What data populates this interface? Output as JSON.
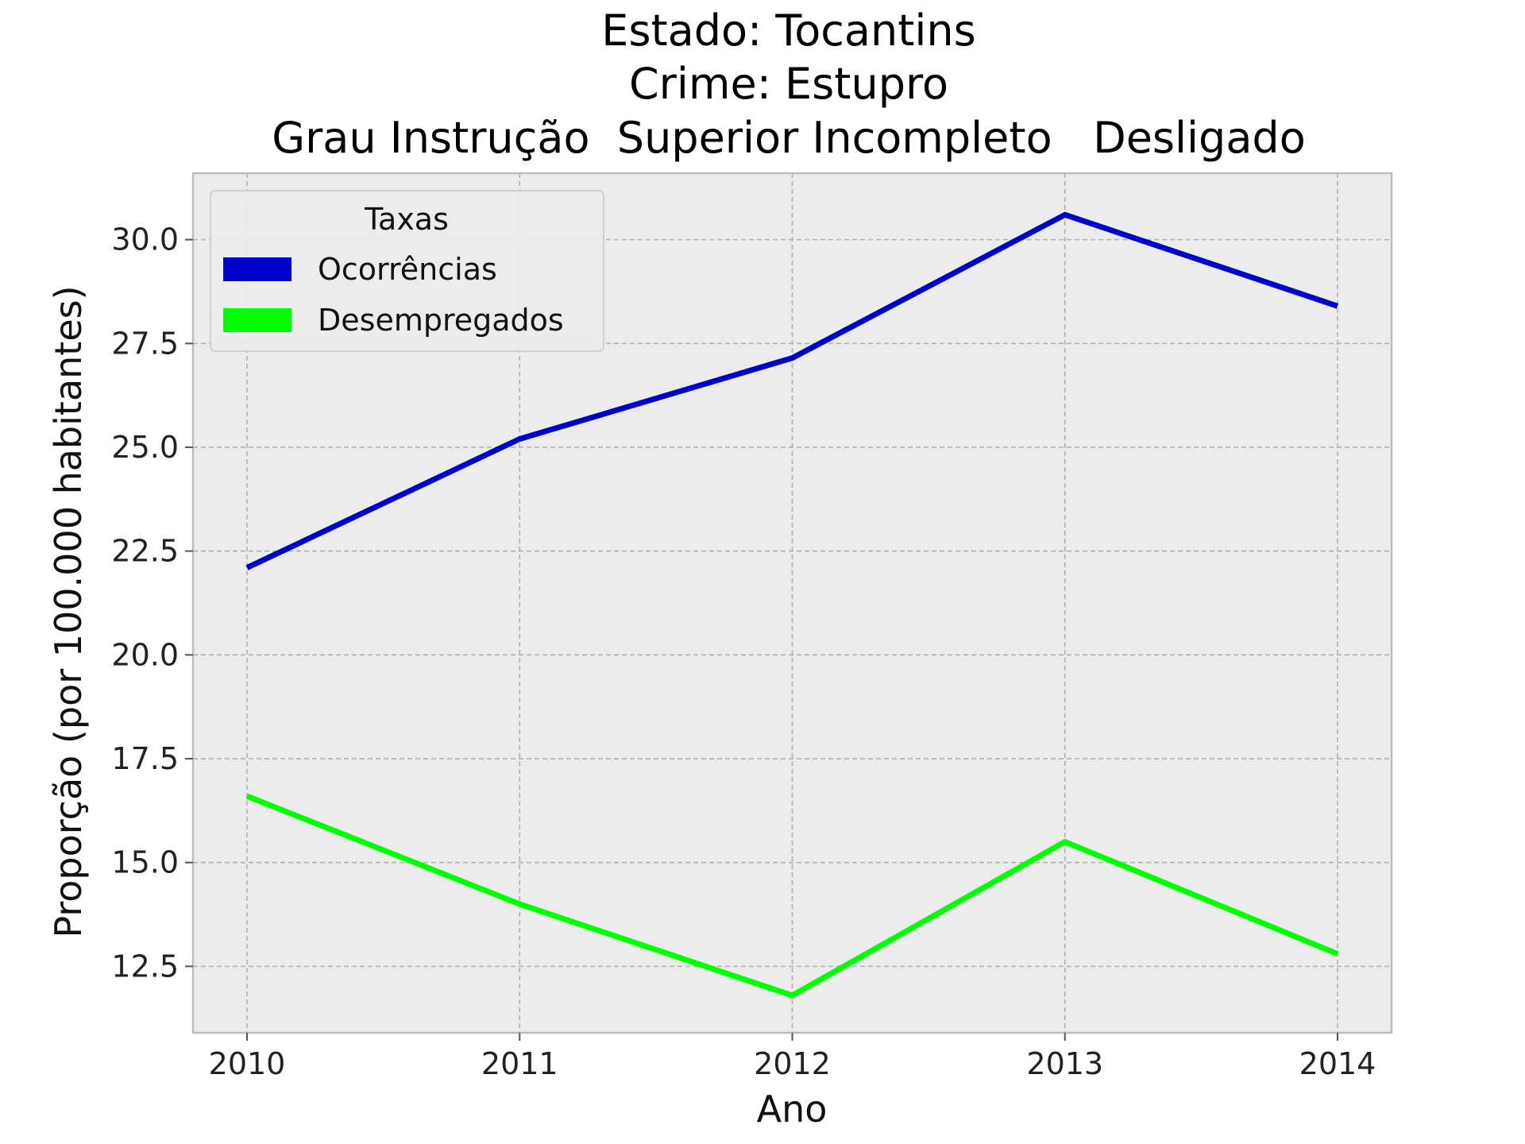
{
  "chart_data": {
    "type": "line",
    "title_lines": [
      "Estado: Tocantins",
      "Crime: Estupro",
      "Grau Instrução  Superior Incompleto   Desligado"
    ],
    "xlabel": "Ano",
    "ylabel": "Proporção (por 100.000 habitantes)",
    "categories": [
      "2010",
      "2011",
      "2012",
      "2013",
      "2014"
    ],
    "y_ticks": [
      "12.5",
      "15.0",
      "17.5",
      "20.0",
      "22.5",
      "25.0",
      "27.5",
      "30.0"
    ],
    "ylim": [
      10.9,
      31.6
    ],
    "grid": true,
    "legend": {
      "title": "Taxas",
      "placement": "top-left"
    },
    "series": [
      {
        "name": "Ocorrências",
        "color": "#0000cc",
        "values": [
          22.1,
          25.2,
          27.15,
          30.6,
          28.4
        ]
      },
      {
        "name": "Desempregados",
        "color": "#00ff00",
        "values": [
          16.6,
          14.0,
          11.8,
          15.5,
          12.8
        ]
      }
    ],
    "colors": {
      "plot_background": "#ececec",
      "frame": "#bcbcbc",
      "grid": "#b0b0b0"
    }
  }
}
